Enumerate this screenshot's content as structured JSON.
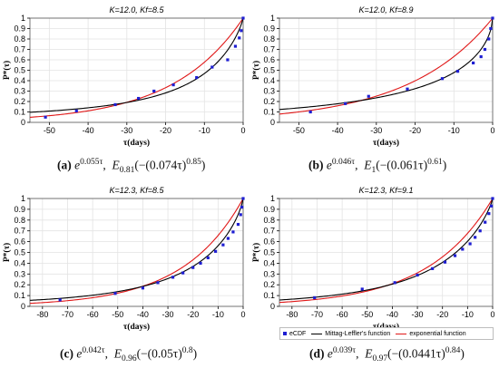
{
  "colors": {
    "ecdf": "#1e1ed2",
    "mittag": "#000000",
    "exponential": "#e01818",
    "grid": "#e3e3e3"
  },
  "axis_label_y": "P*(τ)",
  "axis_label_x": "τ(days)",
  "legend": {
    "ecdf": "eCDF",
    "mittag": "Mittag-Leffler's function",
    "exponential": "exponential function"
  },
  "chart_data": [
    {
      "type": "scatter",
      "title": "K=12.0, Kf=8.5",
      "caption_label": "(a)",
      "caption_exp": "0.055τ",
      "caption_ml_sub": "0.81",
      "caption_ml_arg": "(−(0.074τ)",
      "caption_ml_pow": "0.85",
      "xlabel": "τ(days)",
      "ylabel": "P*(τ)",
      "xlim": [
        -55,
        0
      ],
      "ylim": [
        0,
        1
      ],
      "xticks": [
        -50,
        -40,
        -30,
        -20,
        -10,
        0
      ],
      "yticks": [
        0,
        0.1,
        0.2,
        0.3,
        0.4,
        0.5,
        0.6,
        0.7,
        0.8,
        0.9,
        1
      ],
      "grid": true,
      "exp_rate": 0.055,
      "ml_alpha": 0.81,
      "ml_c": 0.074,
      "ml_beta": 0.85,
      "ecdf": [
        [
          -51,
          0.05
        ],
        [
          -43,
          0.11
        ],
        [
          -33,
          0.17
        ],
        [
          -27,
          0.23
        ],
        [
          -23,
          0.3
        ],
        [
          -18,
          0.36
        ],
        [
          -12,
          0.43
        ],
        [
          -8,
          0.53
        ],
        [
          -4,
          0.6
        ],
        [
          -2,
          0.73
        ],
        [
          -1,
          0.81
        ],
        [
          -0.5,
          0.88
        ],
        [
          0,
          1
        ]
      ]
    },
    {
      "type": "scatter",
      "title": "K=12.0, Kf=8.9",
      "caption_label": "(b)",
      "caption_exp": "0.046τ",
      "caption_ml_sub": "1",
      "caption_ml_arg": "(−(0.061τ)",
      "caption_ml_pow": "0.61",
      "xlabel": "τ(days)",
      "ylabel": "P*(τ)",
      "xlim": [
        -55,
        0
      ],
      "ylim": [
        0,
        1
      ],
      "xticks": [
        -50,
        -40,
        -30,
        -20,
        -10,
        0
      ],
      "yticks": [
        0,
        0.1,
        0.2,
        0.3,
        0.4,
        0.5,
        0.6,
        0.7,
        0.8,
        0.9,
        1
      ],
      "grid": true,
      "exp_rate": 0.046,
      "ml_alpha": 1,
      "ml_c": 0.061,
      "ml_beta": 0.61,
      "ecdf": [
        [
          -47,
          0.1
        ],
        [
          -38,
          0.18
        ],
        [
          -32,
          0.25
        ],
        [
          -22,
          0.32
        ],
        [
          -13,
          0.42
        ],
        [
          -9,
          0.49
        ],
        [
          -5,
          0.57
        ],
        [
          -3,
          0.63
        ],
        [
          -2,
          0.7
        ],
        [
          -1,
          0.8
        ],
        [
          -0.5,
          0.9
        ],
        [
          0,
          1
        ]
      ]
    },
    {
      "type": "scatter",
      "title": "K=12.3, Kf=8.5",
      "caption_label": "(c)",
      "caption_exp": "0.042τ",
      "caption_ml_sub": "0.96",
      "caption_ml_arg": "(−(0.05τ)",
      "caption_ml_pow": "0.8",
      "xlabel": "τ(days)",
      "ylabel": "P*(τ)",
      "xlim": [
        -85,
        0
      ],
      "ylim": [
        0,
        1
      ],
      "xticks": [
        -80,
        -70,
        -60,
        -50,
        -40,
        -30,
        -20,
        -10,
        0
      ],
      "yticks": [
        0,
        0.1,
        0.2,
        0.3,
        0.4,
        0.5,
        0.6,
        0.7,
        0.8,
        0.9,
        1
      ],
      "grid": true,
      "exp_rate": 0.042,
      "ml_alpha": 0.96,
      "ml_c": 0.05,
      "ml_beta": 0.8,
      "ecdf": [
        [
          -73,
          0.06
        ],
        [
          -51,
          0.12
        ],
        [
          -40,
          0.17
        ],
        [
          -34,
          0.22
        ],
        [
          -28,
          0.27
        ],
        [
          -24,
          0.31
        ],
        [
          -20,
          0.36
        ],
        [
          -17,
          0.4
        ],
        [
          -14,
          0.45
        ],
        [
          -11,
          0.51
        ],
        [
          -8,
          0.57
        ],
        [
          -6,
          0.63
        ],
        [
          -4,
          0.69
        ],
        [
          -2,
          0.76
        ],
        [
          -1,
          0.85
        ],
        [
          -0.5,
          0.92
        ],
        [
          0,
          1
        ]
      ]
    },
    {
      "type": "scatter",
      "title": "K=12.3, Kf=9.1",
      "caption_label": "(d)",
      "caption_exp": "0.039τ",
      "caption_ml_sub": "0.97",
      "caption_ml_arg": "(−(0.0441τ)",
      "caption_ml_pow": "0.84",
      "xlabel": "τ(days)",
      "ylabel": "P*(τ)",
      "xlim": [
        -85,
        0
      ],
      "ylim": [
        0,
        1
      ],
      "xticks": [
        -80,
        -70,
        -60,
        -50,
        -40,
        -30,
        -20,
        -10,
        0
      ],
      "yticks": [
        0,
        0.1,
        0.2,
        0.3,
        0.4,
        0.5,
        0.6,
        0.7,
        0.8,
        0.9,
        1
      ],
      "grid": true,
      "exp_rate": 0.039,
      "ml_alpha": 0.97,
      "ml_c": 0.0441,
      "ml_beta": 0.84,
      "ecdf": [
        [
          -71,
          0.08
        ],
        [
          -52,
          0.16
        ],
        [
          -39,
          0.22
        ],
        [
          -30,
          0.29
        ],
        [
          -24,
          0.35
        ],
        [
          -19,
          0.41
        ],
        [
          -15,
          0.47
        ],
        [
          -12,
          0.53
        ],
        [
          -9,
          0.58
        ],
        [
          -7,
          0.64
        ],
        [
          -5,
          0.7
        ],
        [
          -3,
          0.78
        ],
        [
          -1.5,
          0.86
        ],
        [
          -0.5,
          0.93
        ],
        [
          0,
          1
        ]
      ]
    }
  ]
}
